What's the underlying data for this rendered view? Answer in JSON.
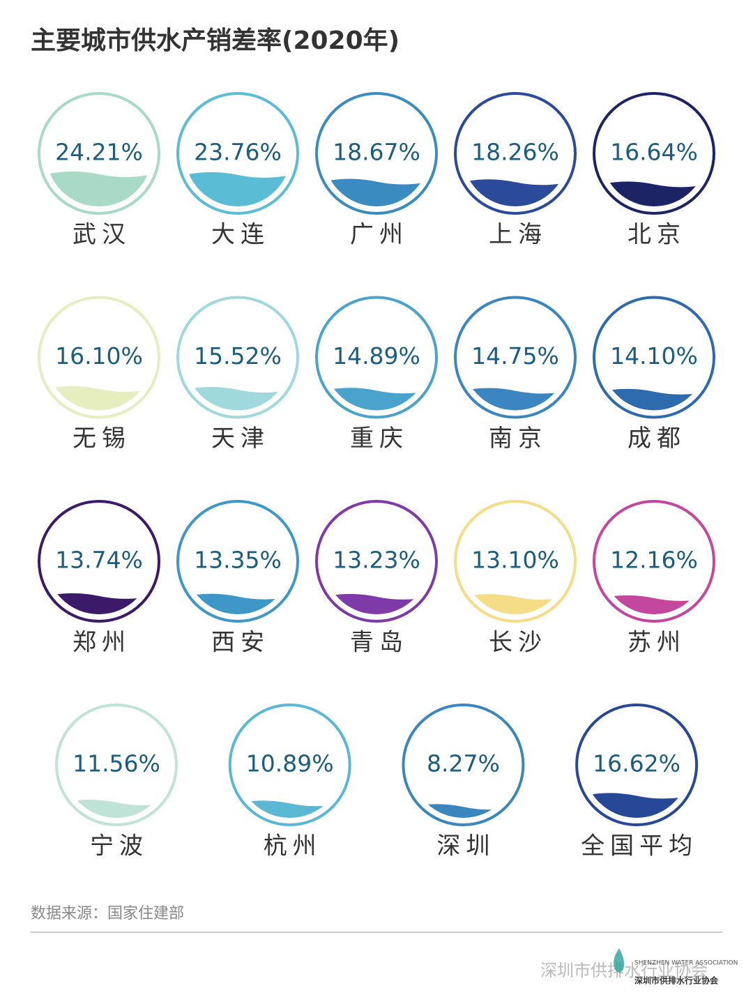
{
  "chart_data": {
    "type": "water-gauge",
    "title": "主要城市供水产销差率(2020年)",
    "categories": [
      "武汉",
      "大连",
      "广州",
      "上海",
      "北京",
      "无锡",
      "天津",
      "重庆",
      "南京",
      "成都",
      "郑州",
      "西安",
      "青岛",
      "长沙",
      "苏州",
      "宁波",
      "杭州",
      "深圳",
      "全国平均"
    ],
    "values": [
      24.21,
      23.76,
      18.67,
      18.26,
      16.64,
      16.1,
      15.52,
      14.89,
      14.75,
      14.1,
      13.74,
      13.35,
      13.23,
      13.1,
      12.16,
      11.56,
      10.89,
      8.27,
      16.62
    ],
    "value_labels": [
      "24.21%",
      "23.76%",
      "18.67%",
      "18.26%",
      "16.64%",
      "16.10%",
      "15.52%",
      "14.89%",
      "14.75%",
      "14.10%",
      "13.74%",
      "13.35%",
      "13.23%",
      "13.10%",
      "12.16%",
      "11.56%",
      "10.89%",
      "8.27%",
      "16.62%"
    ],
    "colors": [
      "#a9dac7",
      "#5bbcd6",
      "#3a8cc0",
      "#2b4b9a",
      "#1d2466",
      "#e6eebf",
      "#9fd9dc",
      "#4aa3cc",
      "#3b86c0",
      "#2e6aae",
      "#3b1a6a",
      "#3f97c8",
      "#7e3aa6",
      "#f5dc86",
      "#c4479e",
      "#bfe3d6",
      "#5ab8d4",
      "#3a86bd",
      "#274896"
    ],
    "source": "数据来源：国家住建部",
    "watermark": "深圳市供排水行业协会",
    "logo_text": "SHENZHEN WATER ASSOCIATION",
    "logo_name": "深圳市供排水行业协会"
  }
}
